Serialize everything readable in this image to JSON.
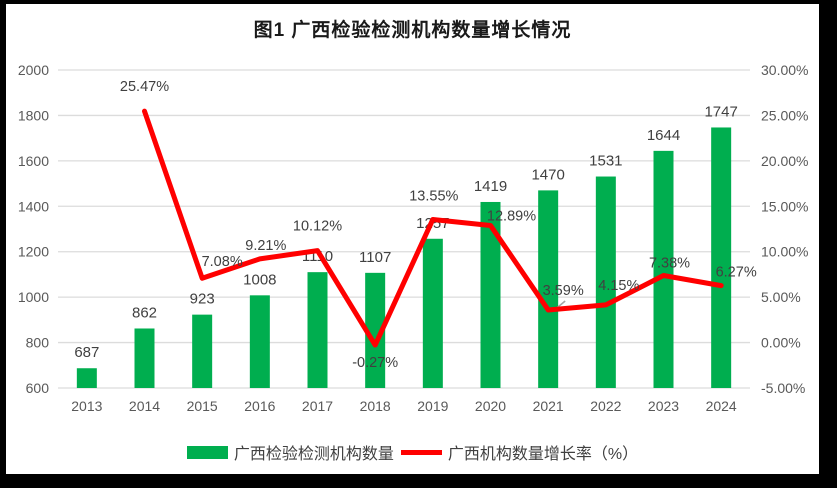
{
  "title": "图1 广西检验检测机构数量增长情况",
  "colors": {
    "bar": "#00AE4F",
    "line": "#FF0000",
    "grid": "#DCDCDC",
    "tick_label": "#595959",
    "data_label": "#404040",
    "leader": "#A6A6A6",
    "frame": "#000000",
    "background": "#FFFFFF"
  },
  "legend": {
    "items": [
      {
        "label": "广西检验检测机构数量",
        "type": "bar"
      },
      {
        "label": "广西机构数量增长率（%）",
        "type": "line"
      }
    ]
  },
  "chart_data": {
    "type": "combo-bar-line",
    "title": "图1 广西检验检测机构数量增长情况",
    "categories": [
      "2013",
      "2014",
      "2015",
      "2016",
      "2017",
      "2018",
      "2019",
      "2020",
      "2021",
      "2022",
      "2023",
      "2024"
    ],
    "series": [
      {
        "name": "广西检验检测机构数量",
        "type": "bar",
        "axis": "left",
        "values": [
          687,
          862,
          923,
          1008,
          1110,
          1107,
          1257,
          1419,
          1470,
          1531,
          1644,
          1747
        ],
        "data_labels": [
          "687",
          "862",
          "923",
          "1008",
          "1110",
          "1107",
          "1257",
          "1419",
          "1470",
          "1531",
          "1644",
          "1747"
        ]
      },
      {
        "name": "广西机构数量增长率（%）",
        "type": "line",
        "axis": "right",
        "values": [
          null,
          25.47,
          7.08,
          9.21,
          10.12,
          -0.27,
          13.55,
          12.89,
          3.59,
          4.15,
          7.38,
          6.27
        ],
        "data_labels": [
          null,
          "25.47%",
          "7.08%",
          "9.21%",
          "10.12%",
          "-0.27%",
          "13.55%",
          "12.89%",
          "3.59%",
          "4.15%",
          "7.38%",
          "6.27%"
        ]
      }
    ],
    "left_axis": {
      "min": 600,
      "max": 2000,
      "step": 200,
      "ticks": [
        "600",
        "800",
        "1000",
        "1200",
        "1400",
        "1600",
        "1800",
        "2000"
      ]
    },
    "right_axis": {
      "min": -5,
      "max": 30,
      "step": 5,
      "ticks": [
        "-5.00%",
        "0.00%",
        "5.00%",
        "10.00%",
        "15.00%",
        "20.00%",
        "25.00%",
        "30.00%"
      ]
    },
    "grid": true,
    "legend_position": "bottom"
  }
}
